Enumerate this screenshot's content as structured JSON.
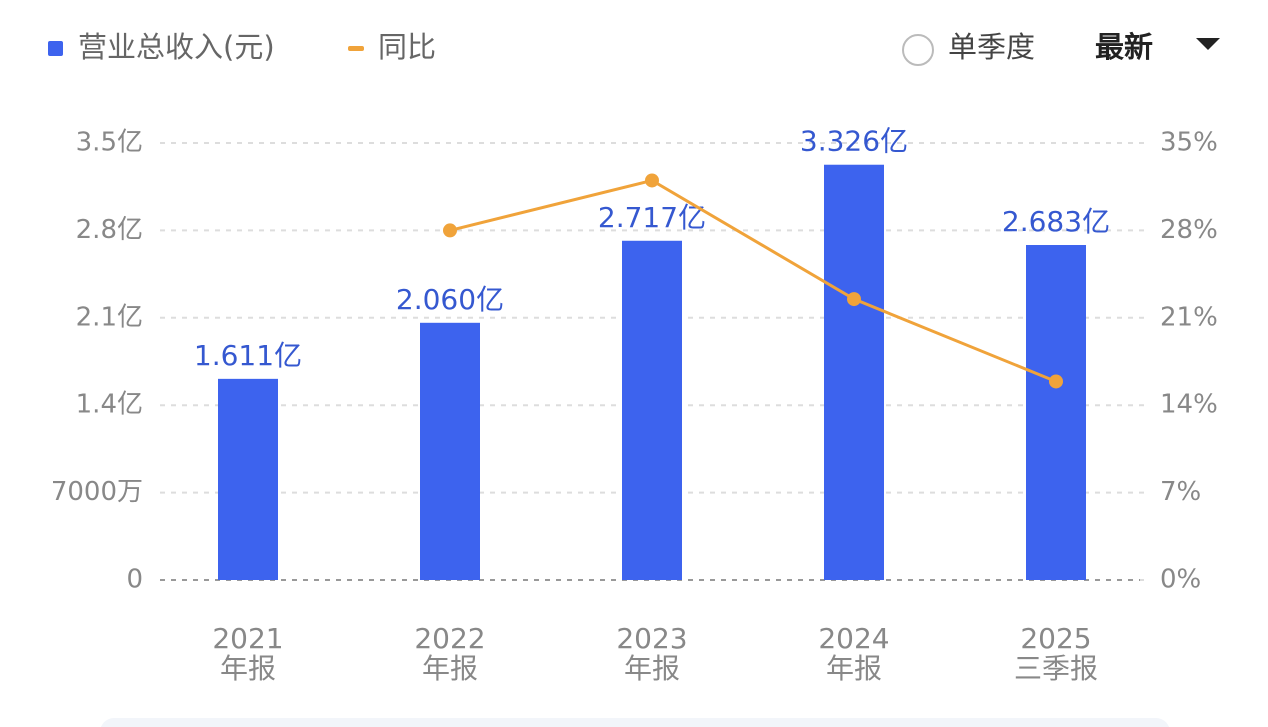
{
  "chart_data": {
    "type": "bar",
    "categories": [
      "2021\n年报",
      "2022\n年报",
      "2023\n年报",
      "2024\n年报",
      "2025\n三季报"
    ],
    "series": [
      {
        "name": "营业总收入(元)",
        "type": "bar",
        "color": "#3d63ee",
        "values": [
          1.611,
          2.06,
          2.717,
          3.326,
          2.683
        ],
        "value_labels": [
          "1.611亿",
          "2.060亿",
          "2.717亿",
          "3.326亿",
          "2.683亿"
        ]
      },
      {
        "name": "同比",
        "type": "line",
        "axis": "y2",
        "color": "#f0a33a",
        "values": [
          null,
          28,
          32,
          22.5,
          15.9
        ]
      }
    ],
    "ylim": [
      0,
      3.5
    ],
    "yticks": [
      0,
      {
        "value": 0.7,
        "label": "7000万"
      },
      {
        "value": 1.4,
        "label": "1.4亿"
      },
      {
        "value": 2.1,
        "label": "2.1亿"
      },
      {
        "value": 2.8,
        "label": "2.8亿"
      },
      {
        "value": 3.5,
        "label": "3.5亿"
      }
    ],
    "y2lim": [
      0,
      35
    ],
    "y2ticks": [
      {
        "value": 0,
        "label": "0%"
      },
      {
        "value": 7,
        "label": "7%"
      },
      {
        "value": 14,
        "label": "14%"
      },
      {
        "value": 21,
        "label": "21%"
      },
      {
        "value": 28,
        "label": "28%"
      },
      {
        "value": 35,
        "label": "35%"
      }
    ],
    "grid": true
  },
  "controls": {
    "single_quarter": "单季度",
    "period": "最新"
  }
}
